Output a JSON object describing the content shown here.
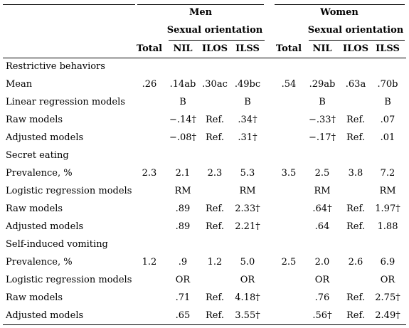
{
  "header": {
    "men": "Men",
    "women": "Women",
    "orientation_men": "Sexual orientation",
    "orientation_women": "Sexual orientation",
    "columns": [
      "Total",
      "NIL",
      "ILOS",
      "ILSS",
      "Total",
      "NIL",
      "ILOS",
      "ILSS"
    ]
  },
  "rows": [
    {
      "label": "Restrictive behaviors",
      "cells": [
        "",
        "",
        "",
        "",
        "",
        "",
        "",
        ""
      ]
    },
    {
      "label": "Mean",
      "cells": [
        ".26",
        ".14ab",
        ".30ac",
        ".49bc",
        ".54",
        ".29ab",
        ".63a",
        ".70b"
      ]
    },
    {
      "label": "Linear regression models",
      "cells": [
        "",
        "B",
        "",
        "B",
        "",
        "B",
        "",
        "B"
      ]
    },
    {
      "label": "Raw models",
      "cells": [
        "",
        "−.14†",
        "Ref.",
        ".34†",
        "",
        "−.33†",
        "Ref.",
        ".07"
      ]
    },
    {
      "label": "Adjusted models",
      "cells": [
        "",
        "−.08†",
        "Ref.",
        ".31†",
        "",
        "−.17†",
        "Ref.",
        ".01"
      ]
    },
    {
      "label": "Secret eating",
      "cells": [
        "",
        "",
        "",
        "",
        "",
        "",
        "",
        ""
      ]
    },
    {
      "label": "Prevalence, %",
      "cells": [
        "2.3",
        "2.1",
        "2.3",
        "5.3",
        "3.5",
        "2.5",
        "3.8",
        "7.2"
      ]
    },
    {
      "label": "Logistic regression models",
      "cells": [
        "",
        "RM",
        "",
        "RM",
        "",
        "RM",
        "",
        "RM"
      ]
    },
    {
      "label": "Raw models",
      "cells": [
        "",
        ".89",
        "Ref.",
        "2.33†",
        "",
        ".64†",
        "Ref.",
        "1.97†"
      ]
    },
    {
      "label": "Adjusted models",
      "cells": [
        "",
        ".89",
        "Ref.",
        "2.21†",
        "",
        ".64",
        "Ref.",
        "1.88"
      ]
    },
    {
      "label": "Self-induced vomiting",
      "cells": [
        "",
        "",
        "",
        "",
        "",
        "",
        "",
        ""
      ]
    },
    {
      "label": "Prevalence, %",
      "cells": [
        "1.2",
        ".9",
        "1.2",
        "5.0",
        "2.5",
        "2.0",
        "2.6",
        "6.9"
      ]
    },
    {
      "label": "Logistic regression models",
      "cells": [
        "",
        "OR",
        "",
        "OR",
        "",
        "OR",
        "",
        "OR"
      ]
    },
    {
      "label": "Raw models",
      "cells": [
        "",
        ".71",
        "Ref.",
        "4.18†",
        "",
        ".76",
        "Ref.",
        "2.75†"
      ]
    },
    {
      "label": "Adjusted models",
      "cells": [
        "",
        ".65",
        "Ref.",
        "3.55†",
        "",
        ".56†",
        "Ref.",
        "2.49†"
      ]
    }
  ]
}
